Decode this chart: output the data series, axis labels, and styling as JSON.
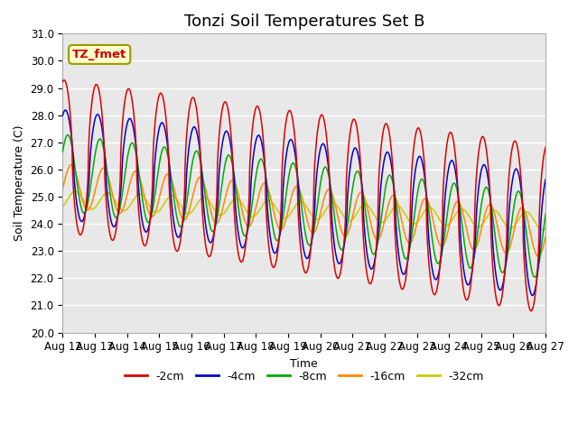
{
  "title": "Tonzi Soil Temperatures Set B",
  "xlabel": "Time",
  "ylabel": "Soil Temperature (C)",
  "ylim": [
    20.0,
    31.0
  ],
  "yticks": [
    20.0,
    21.0,
    22.0,
    23.0,
    24.0,
    25.0,
    26.0,
    27.0,
    28.0,
    29.0,
    30.0,
    31.0
  ],
  "date_labels": [
    "Aug 12",
    "Aug 13",
    "Aug 14",
    "Aug 15",
    "Aug 16",
    "Aug 17",
    "Aug 18",
    "Aug 19",
    "Aug 20",
    "Aug 21",
    "Aug 22",
    "Aug 23",
    "Aug 24",
    "Aug 25",
    "Aug 26",
    "Aug 27"
  ],
  "annotation_text": "TZ_fmet",
  "annotation_color": "#cc0000",
  "annotation_bg": "#ffffcc",
  "annotation_border": "#999900",
  "series": [
    {
      "label": "-2cm",
      "color": "#dd0000"
    },
    {
      "label": "-4cm",
      "color": "#0000cc"
    },
    {
      "label": "-8cm",
      "color": "#00aa00"
    },
    {
      "label": "-16cm",
      "color": "#ff8800"
    },
    {
      "label": "-32cm",
      "color": "#cccc00"
    }
  ],
  "bg_color": "#e8e8e8",
  "grid_color": "#ffffff",
  "title_fontsize": 13,
  "axis_fontsize": 9,
  "tick_fontsize": 8.5,
  "figsize": [
    6.4,
    4.8
  ],
  "dpi": 100
}
